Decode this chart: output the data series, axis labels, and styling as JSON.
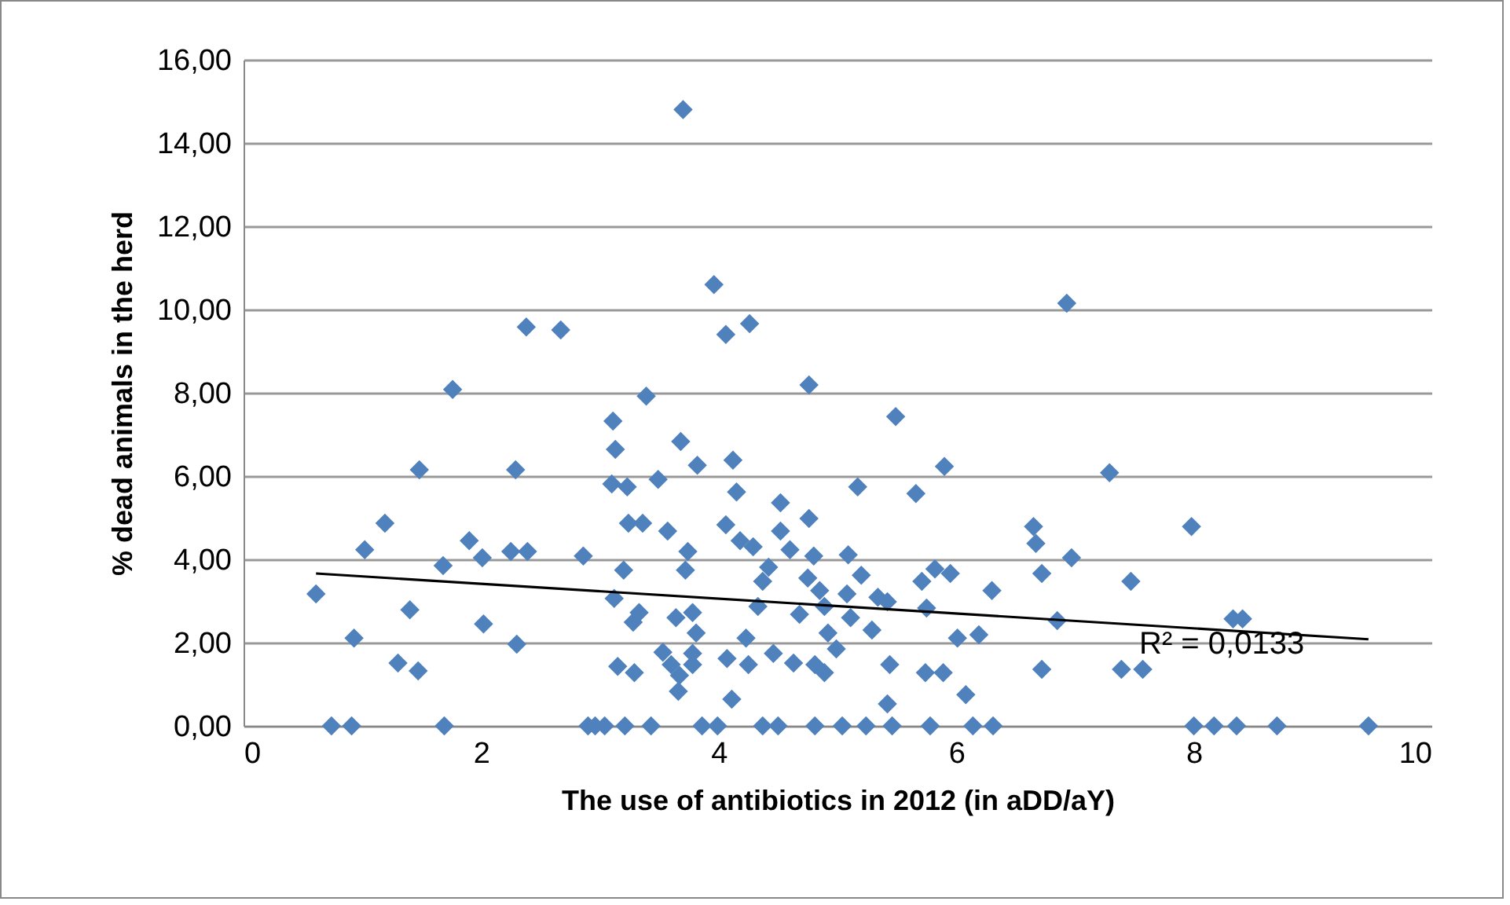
{
  "chart_data": {
    "type": "scatter",
    "xlabel": "The use of antibiotics in 2012 (in aDD/aY)",
    "ylabel": "% dead animals in the herd",
    "xlim": [
      0,
      10
    ],
    "xticks": [
      0,
      2,
      4,
      6,
      8,
      10
    ],
    "ylim": [
      0,
      16
    ],
    "yticks": [
      {
        "value": 0,
        "label": "0,00"
      },
      {
        "value": 2,
        "label": "2,00"
      },
      {
        "value": 4,
        "label": "4,00"
      },
      {
        "value": 6,
        "label": "6,00"
      },
      {
        "value": 8,
        "label": "8,00"
      },
      {
        "value": 10,
        "label": "10,00"
      },
      {
        "value": 12,
        "label": "12,00"
      },
      {
        "value": 14,
        "label": "14,00"
      },
      {
        "value": 16,
        "label": "16,00"
      }
    ],
    "grid": "y",
    "annotations": [
      "R² = 0,0133"
    ],
    "series": [
      {
        "color": "#4f81bd",
        "marker": "diamond",
        "x": [
          0.61,
          0.74,
          0.91,
          0.93,
          1.02,
          1.19,
          1.4,
          1.3,
          1.47,
          1.48,
          1.68,
          1.69,
          1.76,
          1.9,
          2.01,
          2.02,
          2.29,
          2.25,
          2.39,
          2.3,
          2.38,
          2.67,
          2.86,
          2.9,
          2.96,
          3.04,
          3.11,
          3.13,
          3.1,
          3.23,
          3.2,
          3.12,
          3.15,
          3.24,
          3.28,
          3.29,
          3.33,
          3.36,
          3.39,
          3.43,
          3.21,
          3.49,
          3.53,
          3.57,
          3.6,
          3.64,
          3.68,
          3.7,
          3.72,
          3.74,
          3.78,
          3.78,
          3.81,
          3.78,
          3.82,
          3.66,
          3.67,
          3.86,
          3.96,
          3.99,
          4.06,
          4.06,
          4.07,
          4.11,
          4.12,
          4.15,
          4.18,
          4.23,
          4.26,
          4.25,
          4.29,
          4.33,
          4.37,
          4.37,
          4.42,
          4.46,
          4.5,
          4.52,
          4.52,
          4.6,
          4.63,
          4.68,
          4.75,
          4.76,
          4.76,
          4.81,
          4.81,
          4.8,
          4.85,
          4.89,
          4.89,
          4.92,
          4.99,
          5.04,
          5.09,
          5.08,
          5.11,
          5.17,
          5.2,
          5.24,
          5.29,
          5.34,
          5.42,
          5.44,
          5.42,
          5.46,
          5.49,
          5.66,
          5.71,
          5.75,
          5.78,
          5.74,
          5.82,
          5.9,
          5.89,
          5.95,
          6.01,
          6.08,
          6.14,
          6.19,
          6.31,
          6.3,
          6.65,
          6.67,
          6.72,
          6.72,
          6.85,
          6.93,
          6.97,
          7.29,
          7.39,
          7.47,
          7.57,
          7.98,
          8.0,
          8.17,
          8.36,
          8.33,
          8.41,
          8.7,
          9.47
        ],
        "values": [
          3.17,
          0,
          0,
          2.11,
          4.23,
          4.87,
          2.79,
          1.51,
          1.32,
          6.15,
          3.85,
          0,
          8.08,
          4.45,
          4.04,
          2.45,
          6.15,
          4.19,
          4.19,
          1.96,
          9.58,
          9.51,
          4.08,
          0,
          0,
          0,
          7.32,
          6.64,
          5.81,
          5.74,
          3.74,
          3.06,
          1.43,
          4.87,
          2.49,
          1.28,
          2.72,
          4.87,
          7.92,
          0,
          0,
          5.92,
          1.77,
          4.68,
          1.47,
          2.6,
          6.83,
          14.8,
          3.74,
          4.19,
          1.47,
          1.74,
          2.23,
          2.72,
          6.26,
          0.83,
          1.21,
          0,
          10.6,
          0,
          9.4,
          4.83,
          1.62,
          0.64,
          6.38,
          5.62,
          4.45,
          2.11,
          9.66,
          1.47,
          4.3,
          2.87,
          3.47,
          0,
          3.81,
          1.74,
          0,
          5.36,
          4.68,
          4.23,
          1.51,
          2.68,
          3.55,
          8.19,
          4.98,
          1.47,
          0,
          4.08,
          3.25,
          2.87,
          1.28,
          2.23,
          1.85,
          0,
          4.11,
          3.17,
          2.6,
          5.74,
          3.62,
          0,
          2.3,
          3.09,
          2.98,
          1.47,
          0.53,
          0,
          7.43,
          5.58,
          3.47,
          2.83,
          0,
          1.28,
          3.77,
          6.23,
          1.28,
          3.66,
          2.11,
          0.75,
          0,
          2.19,
          0,
          3.25,
          4.79,
          4.38,
          3.66,
          1.36,
          2.53,
          10.15,
          4.04,
          6.08,
          1.36,
          3.47,
          1.36,
          4.79,
          0,
          0,
          0,
          2.57,
          2.57,
          0,
          0
        ]
      },
      {
        "type": "line",
        "marker": "none",
        "color": "#000000",
        "x": [
          0.61,
          9.47
        ],
        "values": [
          3.66,
          2.08
        ]
      }
    ]
  }
}
